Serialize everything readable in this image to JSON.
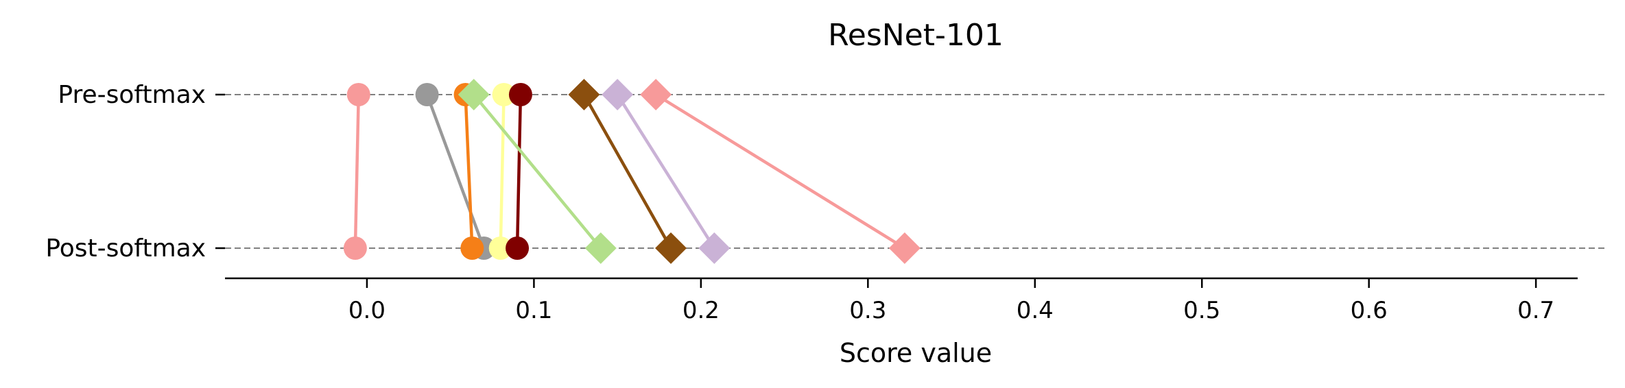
{
  "chart_data": {
    "type": "scatter",
    "title": "ResNet-101",
    "xlabel": "Score value",
    "ylabel": "",
    "xlim": [
      -0.085,
      0.725
    ],
    "xticks": [
      0.0,
      0.1,
      0.2,
      0.3,
      0.4,
      0.5,
      0.6,
      0.7
    ],
    "xtick_labels": [
      "0.0",
      "0.1",
      "0.2",
      "0.3",
      "0.4",
      "0.5",
      "0.6",
      "0.7"
    ],
    "categories": [
      "Pre-softmax",
      "Post-softmax"
    ],
    "grid": "dashed horizontal lines at categories",
    "series": [
      {
        "color": "#f79a9a",
        "marker": "circle",
        "pre": -0.005,
        "post": -0.007
      },
      {
        "color": "#999999",
        "marker": "circle",
        "pre": 0.036,
        "post": 0.07
      },
      {
        "color": "#f57f17",
        "marker": "circle",
        "pre": 0.059,
        "post": 0.063
      },
      {
        "color": "#ffff99",
        "marker": "circle",
        "pre": 0.082,
        "post": 0.08
      },
      {
        "color": "#800000",
        "marker": "circle",
        "pre": 0.092,
        "post": 0.09
      },
      {
        "color": "#b2df8a",
        "marker": "diamond",
        "pre": 0.064,
        "post": 0.14
      },
      {
        "color": "#8b4f0e",
        "marker": "diamond",
        "pre": 0.13,
        "post": 0.182
      },
      {
        "color": "#cab2d6",
        "marker": "diamond",
        "pre": 0.15,
        "post": 0.208
      },
      {
        "color": "#f79a9a",
        "marker": "diamond",
        "pre": 0.173,
        "post": 0.322
      }
    ]
  }
}
